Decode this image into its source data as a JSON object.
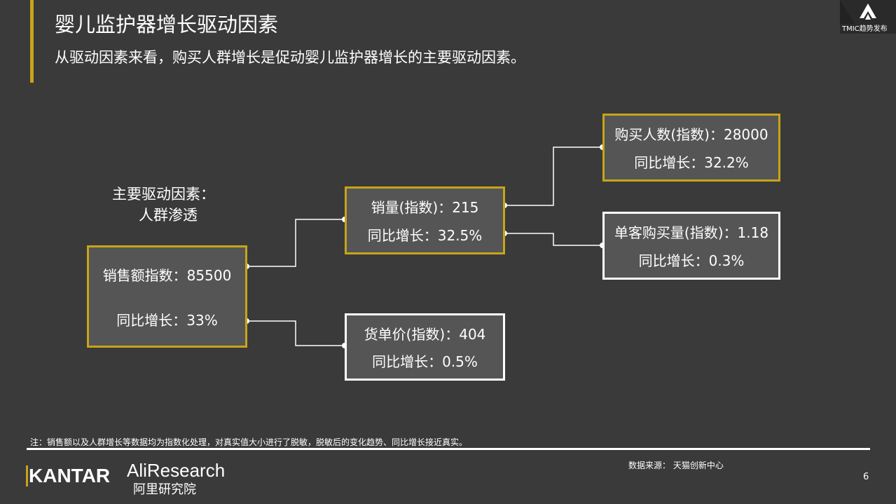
{
  "header": {
    "title": "婴儿监护器增长驱动因素",
    "subtitle": "从驱动因素来看，购买人群增长是促动婴儿监护器增长的主要驱动因素。"
  },
  "brand": {
    "logo_text": "TMIC趋势发布",
    "accent": "#c8a418"
  },
  "driver_label": {
    "line1": "主要驱动因素：",
    "line2": "人群渗透"
  },
  "nodes": {
    "sales": {
      "value": "销售额指数：85500",
      "growth": "同比增长：33%"
    },
    "volume": {
      "value": "销量(指数)：215",
      "growth": "同比增长：32.5%"
    },
    "price": {
      "value": "货单价(指数)：404",
      "growth": "同比增长：0.5%"
    },
    "buyers": {
      "value": "购买人数(指数)：28000",
      "growth": "同比增长：32.2%"
    },
    "per_buyer": {
      "value": "单客购买量(指数)：1.18",
      "growth": "同比增长：0.3%"
    }
  },
  "footer": {
    "note": "注：销售额以及人群增长等数据均为指数化处理，对真实值大小进行了脱敏，脱敏后的变化趋势、同比增长接近真实。",
    "source": "数据来源：  天猫创新中心",
    "page": "6",
    "logo1": "KANTAR",
    "logo2": "AliResearch",
    "logo2_cn": "阿里研究院"
  }
}
